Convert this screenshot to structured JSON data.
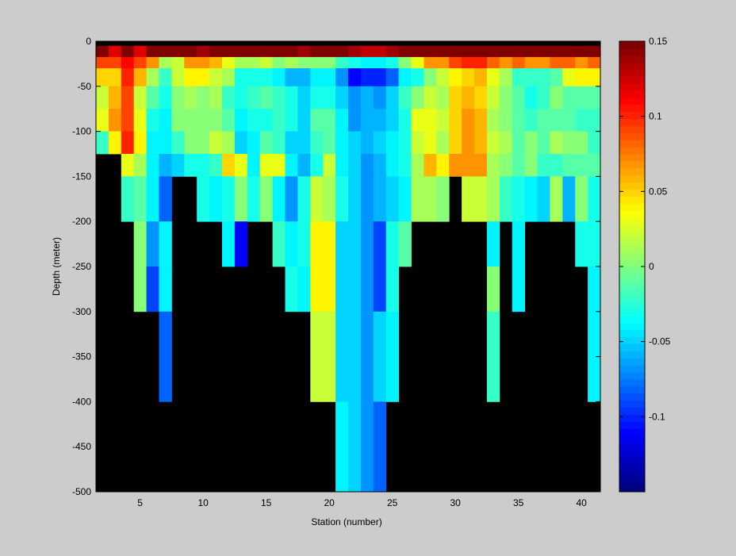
{
  "chart_data": {
    "type": "heatmap",
    "xlabel": "Station (number)",
    "ylabel": "Depth (meter)",
    "xlim": [
      1.5,
      41.5
    ],
    "ylim": [
      -500,
      0
    ],
    "x_ticks": [
      5,
      10,
      15,
      20,
      25,
      30,
      35,
      40
    ],
    "y_ticks": [
      0,
      -50,
      -100,
      -150,
      -200,
      -250,
      -300,
      -350,
      -400,
      -450,
      -500
    ],
    "colorbar": {
      "colormap": "jet",
      "clim": [
        -0.15,
        0.15
      ],
      "ticks": [
        0.15,
        0.1,
        0.05,
        0,
        -0.05,
        -0.1
      ]
    },
    "background_color": "#000000",
    "depth_bins": [
      [
        -5,
        -17.5
      ],
      [
        -17.5,
        -30
      ],
      [
        -30,
        -50
      ],
      [
        -50,
        -75
      ],
      [
        -75,
        -100
      ],
      [
        -100,
        -125
      ],
      [
        -125,
        -150
      ],
      [
        -150,
        -200
      ],
      [
        -200,
        -250
      ],
      [
        -250,
        -300
      ],
      [
        -300,
        -400
      ],
      [
        -400,
        -500
      ]
    ],
    "stations": [
      2,
      3,
      4,
      5,
      6,
      7,
      8,
      9,
      10,
      11,
      12,
      13,
      14,
      15,
      16,
      17,
      18,
      19,
      20,
      21,
      22,
      23,
      24,
      25,
      26,
      27,
      28,
      29,
      30,
      31,
      32,
      33,
      34,
      35,
      36,
      37,
      38,
      39,
      40,
      41
    ],
    "values": [
      [
        0.15,
        0.12,
        0.15,
        0.12,
        0.15,
        0.15,
        0.15,
        0.15,
        0.14,
        0.15,
        0.15,
        0.15,
        0.15,
        0.15,
        0.15,
        0.15,
        0.14,
        0.15,
        0.15,
        0.15,
        0.14,
        0.13,
        0.13,
        0.14,
        0.15,
        0.15,
        0.15,
        0.15,
        0.15,
        0.15,
        0.15,
        0.15,
        0.15,
        0.15,
        0.15,
        0.15,
        0.15,
        0.15,
        0.15,
        0.15
      ],
      [
        0.09,
        0.09,
        0.11,
        0.09,
        0.07,
        0.01,
        0.02,
        0.07,
        0.07,
        0.06,
        0.03,
        0.01,
        0.01,
        0.02,
        0.0,
        0.01,
        0.0,
        0.0,
        0.0,
        -0.02,
        -0.03,
        -0.04,
        -0.04,
        -0.03,
        0.0,
        0.03,
        0.07,
        0.07,
        0.09,
        0.1,
        0.1,
        0.08,
        0.07,
        0.08,
        0.07,
        0.07,
        0.08,
        0.08,
        0.07,
        0.08
      ],
      [
        0.05,
        0.05,
        0.1,
        0.06,
        0.01,
        -0.02,
        0.02,
        0.04,
        0.04,
        0.02,
        0.01,
        -0.03,
        -0.03,
        -0.03,
        -0.04,
        -0.06,
        -0.06,
        -0.04,
        -0.04,
        -0.07,
        -0.11,
        -0.1,
        -0.1,
        -0.08,
        -0.04,
        -0.03,
        0.0,
        0.02,
        0.04,
        0.05,
        0.06,
        0.03,
        0.01,
        -0.02,
        -0.02,
        -0.02,
        -0.01,
        0.03,
        0.04,
        0.04
      ],
      [
        0.02,
        0.06,
        0.09,
        0.02,
        -0.01,
        -0.03,
        0.0,
        0.01,
        0.0,
        0.01,
        -0.02,
        -0.03,
        -0.02,
        -0.01,
        -0.02,
        -0.03,
        -0.05,
        -0.03,
        -0.03,
        -0.05,
        -0.07,
        -0.06,
        -0.07,
        -0.05,
        -0.02,
        0.0,
        0.02,
        0.01,
        0.05,
        0.06,
        0.05,
        0.02,
        0.0,
        -0.01,
        -0.03,
        -0.02,
        0.0,
        -0.01,
        -0.01,
        -0.01
      ],
      [
        0.03,
        0.07,
        0.09,
        0.03,
        -0.03,
        -0.04,
        0.0,
        0.0,
        0.0,
        0.0,
        -0.01,
        -0.04,
        -0.03,
        -0.03,
        -0.02,
        -0.03,
        -0.05,
        -0.01,
        -0.01,
        -0.04,
        -0.07,
        -0.06,
        -0.06,
        -0.05,
        -0.03,
        0.03,
        0.03,
        0.02,
        0.05,
        0.07,
        0.06,
        0.01,
        0.0,
        -0.01,
        -0.02,
        -0.01,
        -0.01,
        -0.01,
        -0.02,
        -0.02
      ],
      [
        -0.02,
        0.04,
        0.1,
        0.04,
        -0.04,
        -0.04,
        -0.02,
        0.0,
        0.0,
        0.02,
        0.01,
        -0.05,
        -0.04,
        -0.01,
        -0.02,
        -0.05,
        -0.05,
        -0.02,
        -0.01,
        -0.04,
        -0.05,
        -0.06,
        -0.05,
        -0.04,
        -0.03,
        0.02,
        0.03,
        0.01,
        0.05,
        0.07,
        0.06,
        0.02,
        0.01,
        -0.01,
        0.0,
        -0.01,
        0.01,
        0.0,
        0.0,
        -0.02
      ],
      [
        null,
        null,
        0.03,
        0.01,
        -0.04,
        -0.06,
        -0.05,
        -0.03,
        -0.03,
        -0.02,
        0.05,
        0.03,
        -0.04,
        0.03,
        0.03,
        -0.04,
        -0.06,
        -0.03,
        0.02,
        -0.04,
        -0.05,
        -0.07,
        -0.06,
        -0.04,
        -0.03,
        0.01,
        0.06,
        0.04,
        0.07,
        0.07,
        0.07,
        0.01,
        0.0,
        -0.01,
        0.0,
        -0.02,
        -0.02,
        -0.01,
        -0.01,
        -0.01
      ],
      [
        null,
        null,
        -0.02,
        -0.01,
        -0.04,
        -0.08,
        null,
        null,
        -0.03,
        -0.04,
        -0.03,
        0.0,
        -0.03,
        0.0,
        -0.04,
        -0.07,
        -0.03,
        0.02,
        0.01,
        -0.03,
        -0.05,
        -0.07,
        -0.06,
        -0.05,
        -0.04,
        0.01,
        0.01,
        0.0,
        null,
        0.02,
        0.02,
        0.01,
        -0.02,
        -0.03,
        -0.04,
        -0.05,
        0.01,
        -0.06,
        0.0,
        -0.03
      ],
      [
        null,
        null,
        null,
        0.0,
        -0.07,
        -0.04,
        null,
        null,
        null,
        null,
        -0.04,
        -0.11,
        null,
        null,
        -0.02,
        -0.04,
        -0.03,
        0.04,
        0.04,
        -0.05,
        -0.05,
        -0.07,
        -0.09,
        -0.03,
        -0.01,
        null,
        null,
        null,
        null,
        null,
        null,
        -0.04,
        null,
        -0.04,
        null,
        null,
        null,
        null,
        -0.03,
        -0.03
      ],
      [
        null,
        null,
        null,
        0.0,
        -0.09,
        -0.04,
        null,
        null,
        null,
        null,
        null,
        null,
        null,
        null,
        null,
        -0.03,
        -0.04,
        0.04,
        0.04,
        -0.05,
        -0.05,
        -0.07,
        -0.09,
        -0.03,
        null,
        null,
        null,
        null,
        null,
        null,
        null,
        0.0,
        null,
        -0.04,
        null,
        null,
        null,
        null,
        null,
        -0.04
      ],
      [
        null,
        null,
        null,
        null,
        null,
        -0.08,
        null,
        null,
        null,
        null,
        null,
        null,
        null,
        null,
        null,
        null,
        null,
        0.02,
        0.02,
        -0.05,
        -0.05,
        -0.07,
        -0.05,
        -0.04,
        null,
        null,
        null,
        null,
        null,
        null,
        null,
        -0.02,
        null,
        null,
        null,
        null,
        null,
        null,
        null,
        -0.04
      ],
      [
        null,
        null,
        null,
        null,
        null,
        null,
        null,
        null,
        null,
        null,
        null,
        null,
        null,
        null,
        null,
        null,
        null,
        null,
        null,
        -0.04,
        -0.05,
        -0.07,
        -0.08,
        null,
        null,
        null,
        null,
        null,
        null,
        null,
        null,
        null,
        null,
        null,
        null,
        null,
        null,
        null,
        null,
        null
      ]
    ]
  }
}
